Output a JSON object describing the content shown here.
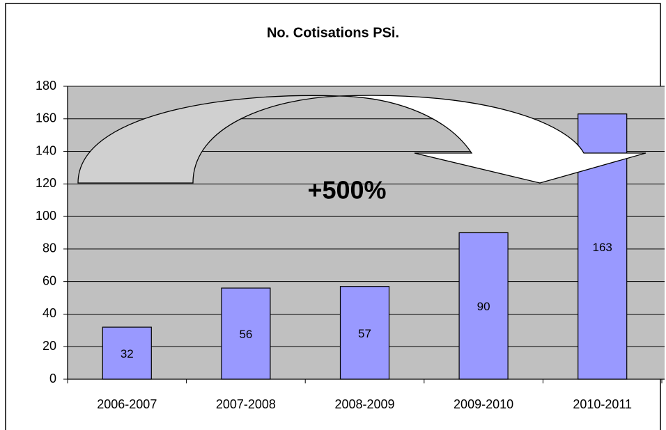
{
  "chart_data": {
    "type": "bar",
    "title": "No. Cotisations PSi.",
    "categories": [
      "2006-2007",
      "2007-2008",
      "2008-2009",
      "2009-2010",
      "2010-2011"
    ],
    "values": [
      32,
      56,
      57,
      90,
      163
    ],
    "color": "#9999ff",
    "ylim": [
      0,
      180
    ],
    "yticks": [
      0,
      20,
      40,
      60,
      80,
      100,
      120,
      140,
      160,
      180
    ],
    "grid": true,
    "annotation": "+500%"
  }
}
